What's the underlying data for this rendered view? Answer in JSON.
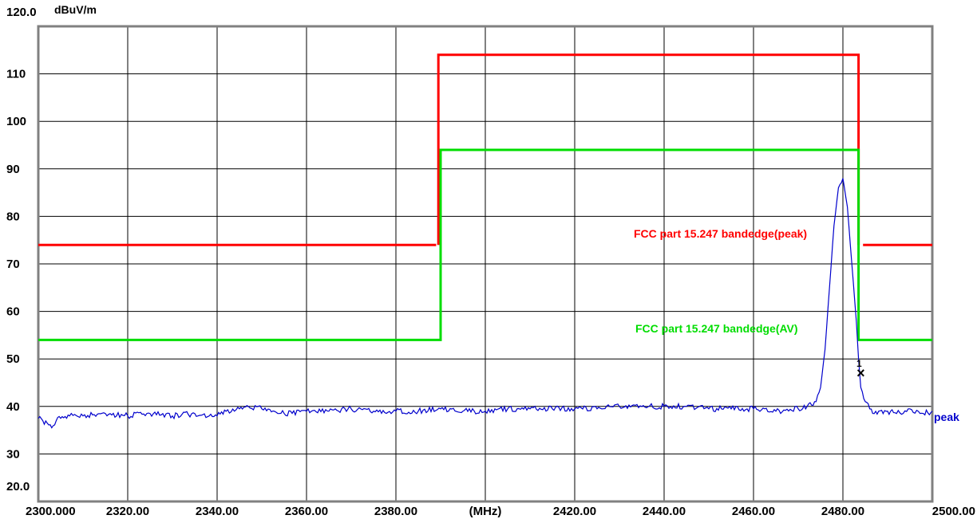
{
  "chart_data": {
    "type": "line",
    "unit_label": "dBuV/m",
    "y_top_label": "120.0",
    "y_bottom_label": "20.0",
    "xlim": [
      2300,
      2500
    ],
    "ylim": [
      20,
      120
    ],
    "grid": true,
    "x_ticks": [
      {
        "value": 2300,
        "label": "2300.000"
      },
      {
        "value": 2320,
        "label": "2320.00"
      },
      {
        "value": 2340,
        "label": "2340.00"
      },
      {
        "value": 2360,
        "label": "2360.00"
      },
      {
        "value": 2380,
        "label": "2380.00"
      },
      {
        "value": 2400,
        "label": "(MHz)"
      },
      {
        "value": 2420,
        "label": "2420.00"
      },
      {
        "value": 2440,
        "label": "2440.00"
      },
      {
        "value": 2460,
        "label": "2460.00"
      },
      {
        "value": 2480,
        "label": "2480.00"
      },
      {
        "value": 2500,
        "label": "2500.00"
      }
    ],
    "y_ticks": [
      {
        "value": 30,
        "label": "30"
      },
      {
        "value": 40,
        "label": "40"
      },
      {
        "value": 50,
        "label": "50"
      },
      {
        "value": 60,
        "label": "60"
      },
      {
        "value": 70,
        "label": "70"
      },
      {
        "value": 80,
        "label": "80"
      },
      {
        "value": 90,
        "label": "90"
      },
      {
        "value": 100,
        "label": "100"
      },
      {
        "value": 110,
        "label": "110"
      }
    ],
    "limit_lines": [
      {
        "name": "FCC part 15.247 bandedge(peak)",
        "color": "#ff0000",
        "segments": [
          [
            [
              2300,
              74
            ],
            [
              2389,
              74
            ]
          ],
          [
            [
              2389.5,
              74
            ],
            [
              2389.5,
              114
            ],
            [
              2483.5,
              114
            ],
            [
              2483.5,
              74
            ]
          ],
          [
            [
              2484.5,
              74
            ],
            [
              2500,
              74
            ]
          ]
        ]
      },
      {
        "name": "FCC part 15.247 bandedge(AV)",
        "color": "#00dd00",
        "segments": [
          [
            [
              2300,
              54
            ],
            [
              2390,
              54
            ],
            [
              2390,
              94
            ],
            [
              2483.5,
              94
            ],
            [
              2483.5,
              54
            ],
            [
              2500,
              54
            ]
          ]
        ]
      }
    ],
    "series": [
      {
        "name": "peak",
        "color": "#0000cc",
        "x": [
          2300,
          2301,
          2302,
          2303,
          2304,
          2305,
          2307,
          2310,
          2315,
          2320,
          2325,
          2330,
          2335,
          2340,
          2342,
          2345,
          2347,
          2350,
          2355,
          2360,
          2365,
          2370,
          2375,
          2380,
          2385,
          2390,
          2395,
          2400,
          2405,
          2410,
          2415,
          2420,
          2425,
          2430,
          2435,
          2440,
          2445,
          2450,
          2455,
          2460,
          2465,
          2470,
          2472,
          2474,
          2475,
          2476,
          2477,
          2478,
          2479,
          2480,
          2481,
          2482,
          2483,
          2483.5,
          2484,
          2485,
          2486,
          2487,
          2488,
          2490,
          2492,
          2495,
          2498,
          2500
        ],
        "y": [
          37.5,
          37,
          36.5,
          35.5,
          37,
          37.5,
          38,
          38,
          38.5,
          38,
          38.5,
          38,
          38.5,
          38,
          39,
          39.5,
          40,
          39.5,
          38.5,
          39,
          39,
          39.5,
          39,
          39,
          39,
          39.5,
          39,
          39,
          39.5,
          39.5,
          39.5,
          39.5,
          39.5,
          40,
          40,
          40,
          40,
          39.5,
          39.5,
          39.5,
          39,
          39.5,
          40,
          41,
          44,
          52,
          65,
          78,
          86,
          88,
          82,
          70,
          58,
          50,
          44,
          41,
          39.5,
          38.5,
          39,
          39,
          38.5,
          39.5,
          38.5,
          39
        ]
      }
    ],
    "marker": {
      "symbol": "×",
      "label": "1",
      "x": 2484,
      "y": 47
    }
  }
}
